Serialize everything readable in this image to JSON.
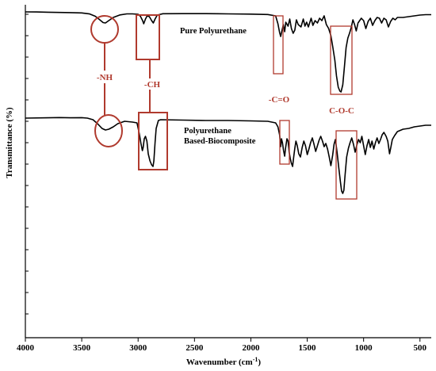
{
  "chart_data": {
    "type": "line",
    "title": "",
    "xlabel": "Wavenumber (cm",
    "xlabel_sup": "-1",
    "xlabel_end": ")",
    "ylabel": "Transmittance (%)",
    "xlim": [
      4000,
      400
    ],
    "x_reversed": true,
    "x_ticks": [
      4000,
      3500,
      3000,
      2500,
      2000,
      1500,
      1000,
      500
    ],
    "grid": false,
    "annotation_color": "#b03a2e",
    "series": [
      {
        "name": "Pure Polyurethane",
        "points": [
          [
            4000,
            3
          ],
          [
            3900,
            3.1
          ],
          [
            3800,
            3.4
          ],
          [
            3700,
            3.7
          ],
          [
            3600,
            3.9
          ],
          [
            3500,
            4.3
          ],
          [
            3430,
            5.6
          ],
          [
            3380,
            8.5
          ],
          [
            3340,
            13
          ],
          [
            3310,
            16.5
          ],
          [
            3290,
            17
          ],
          [
            3260,
            14
          ],
          [
            3220,
            10
          ],
          [
            3160,
            6.8
          ],
          [
            3100,
            5.5
          ],
          [
            3050,
            5.5
          ],
          [
            3000,
            6
          ],
          [
            2980,
            8.5
          ],
          [
            2960,
            14
          ],
          [
            2950,
            18
          ],
          [
            2935,
            12
          ],
          [
            2920,
            8
          ],
          [
            2900,
            9
          ],
          [
            2880,
            14
          ],
          [
            2865,
            17
          ],
          [
            2850,
            12
          ],
          [
            2830,
            7
          ],
          [
            2780,
            5.3
          ],
          [
            2600,
            5.2
          ],
          [
            2400,
            5.2
          ],
          [
            2300,
            5.3
          ],
          [
            2200,
            5.5
          ],
          [
            2000,
            5.8
          ],
          [
            1850,
            6.3
          ],
          [
            1780,
            8
          ],
          [
            1760,
            18
          ],
          [
            1745,
            29
          ],
          [
            1735,
            34
          ],
          [
            1725,
            27
          ],
          [
            1712,
            19
          ],
          [
            1700,
            28
          ],
          [
            1690,
            16
          ],
          [
            1670,
            21
          ],
          [
            1655,
            12
          ],
          [
            1640,
            24
          ],
          [
            1625,
            30
          ],
          [
            1610,
            26
          ],
          [
            1596,
            13
          ],
          [
            1580,
            19
          ],
          [
            1555,
            22
          ],
          [
            1535,
            12
          ],
          [
            1520,
            21
          ],
          [
            1505,
            16
          ],
          [
            1490,
            22
          ],
          [
            1465,
            11
          ],
          [
            1450,
            20
          ],
          [
            1430,
            14
          ],
          [
            1410,
            17
          ],
          [
            1390,
            11
          ],
          [
            1370,
            14
          ],
          [
            1350,
            8
          ],
          [
            1330,
            19
          ],
          [
            1310,
            24
          ],
          [
            1290,
            33
          ],
          [
            1275,
            46
          ],
          [
            1255,
            64
          ],
          [
            1240,
            84
          ],
          [
            1225,
            98
          ],
          [
            1210,
            103
          ],
          [
            1200,
            104
          ],
          [
            1185,
            95
          ],
          [
            1170,
            72
          ],
          [
            1155,
            48
          ],
          [
            1140,
            36
          ],
          [
            1125,
            30
          ],
          [
            1110,
            23
          ],
          [
            1095,
            13
          ],
          [
            1080,
            19
          ],
          [
            1065,
            27
          ],
          [
            1050,
            17
          ],
          [
            1020,
            11
          ],
          [
            1000,
            14
          ],
          [
            980,
            24
          ],
          [
            960,
            15
          ],
          [
            940,
            11
          ],
          [
            920,
            20
          ],
          [
            900,
            14
          ],
          [
            880,
            10
          ],
          [
            860,
            11
          ],
          [
            840,
            17
          ],
          [
            820,
            11
          ],
          [
            800,
            13
          ],
          [
            780,
            22
          ],
          [
            760,
            15
          ],
          [
            740,
            11
          ],
          [
            720,
            13
          ],
          [
            700,
            10
          ],
          [
            650,
            10
          ],
          [
            600,
            9
          ],
          [
            550,
            8
          ],
          [
            500,
            7
          ],
          [
            450,
            6.5
          ],
          [
            400,
            6.5
          ]
        ]
      },
      {
        "name": "Polyurethane Based-Biocomposite",
        "points": [
          [
            4000,
            149
          ],
          [
            3800,
            148.6
          ],
          [
            3700,
            148.3
          ],
          [
            3600,
            148.6
          ],
          [
            3500,
            148.4
          ],
          [
            3450,
            149
          ],
          [
            3400,
            151
          ],
          [
            3360,
            156
          ],
          [
            3320,
            162
          ],
          [
            3290,
            164
          ],
          [
            3260,
            163
          ],
          [
            3220,
            160
          ],
          [
            3180,
            156
          ],
          [
            3120,
            153
          ],
          [
            3050,
            154
          ],
          [
            3010,
            155
          ],
          [
            2990,
            168
          ],
          [
            2975,
            181
          ],
          [
            2962,
            190
          ],
          [
            2955,
            186
          ],
          [
            2945,
            175
          ],
          [
            2935,
            172
          ],
          [
            2922,
            178
          ],
          [
            2910,
            194
          ],
          [
            2895,
            203
          ],
          [
            2880,
            208
          ],
          [
            2868,
            210
          ],
          [
            2860,
            203
          ],
          [
            2850,
            180
          ],
          [
            2840,
            162
          ],
          [
            2820,
            152
          ],
          [
            2800,
            151
          ],
          [
            2600,
            151.5
          ],
          [
            2400,
            152
          ],
          [
            2200,
            152
          ],
          [
            2000,
            152.5
          ],
          [
            1850,
            153
          ],
          [
            1780,
            155
          ],
          [
            1760,
            160
          ],
          [
            1745,
            170
          ],
          [
            1735,
            185
          ],
          [
            1728,
            175
          ],
          [
            1720,
            180
          ],
          [
            1710,
            190
          ],
          [
            1700,
            197
          ],
          [
            1692,
            187
          ],
          [
            1680,
            175
          ],
          [
            1670,
            178
          ],
          [
            1660,
            192
          ],
          [
            1650,
            200
          ],
          [
            1640,
            206
          ],
          [
            1630,
            210
          ],
          [
            1620,
            198
          ],
          [
            1610,
            187
          ],
          [
            1600,
            178
          ],
          [
            1590,
            183
          ],
          [
            1575,
            194
          ],
          [
            1560,
            198
          ],
          [
            1545,
            186
          ],
          [
            1530,
            178
          ],
          [
            1515,
            184
          ],
          [
            1500,
            195
          ],
          [
            1485,
            188
          ],
          [
            1470,
            180
          ],
          [
            1455,
            174
          ],
          [
            1440,
            182
          ],
          [
            1425,
            191
          ],
          [
            1410,
            184
          ],
          [
            1395,
            177
          ],
          [
            1380,
            172
          ],
          [
            1365,
            178
          ],
          [
            1350,
            185
          ],
          [
            1335,
            181
          ],
          [
            1320,
            188
          ],
          [
            1305,
            198
          ],
          [
            1290,
            209
          ],
          [
            1275,
            196
          ],
          [
            1262,
            182
          ],
          [
            1250,
            176
          ],
          [
            1235,
            192
          ],
          [
            1220,
            212
          ],
          [
            1205,
            230
          ],
          [
            1195,
            241
          ],
          [
            1185,
            244
          ],
          [
            1175,
            240
          ],
          [
            1165,
            222
          ],
          [
            1150,
            198
          ],
          [
            1135,
            187
          ],
          [
            1120,
            180
          ],
          [
            1105,
            174
          ],
          [
            1090,
            182
          ],
          [
            1075,
            192
          ],
          [
            1060,
            183
          ],
          [
            1045,
            176
          ],
          [
            1030,
            180
          ],
          [
            1015,
            172
          ],
          [
            1000,
            184
          ],
          [
            985,
            195
          ],
          [
            970,
            184
          ],
          [
            955,
            176
          ],
          [
            940,
            186
          ],
          [
            925,
            178
          ],
          [
            910,
            188
          ],
          [
            895,
            180
          ],
          [
            880,
            174
          ],
          [
            865,
            181
          ],
          [
            850,
            176
          ],
          [
            835,
            170
          ],
          [
            820,
            167
          ],
          [
            800,
            172
          ],
          [
            785,
            178
          ],
          [
            770,
            194
          ],
          [
            760,
            187
          ],
          [
            745,
            176
          ],
          [
            725,
            171
          ],
          [
            700,
            166
          ],
          [
            650,
            163
          ],
          [
            600,
            162
          ],
          [
            550,
            160
          ],
          [
            500,
            159
          ],
          [
            450,
            158
          ],
          [
            400,
            158
          ]
        ]
      }
    ],
    "annotations": [
      {
        "label": "-NH"
      },
      {
        "label": "-CH"
      },
      {
        "label": "-C=O"
      },
      {
        "label": "C-O-C"
      }
    ]
  }
}
